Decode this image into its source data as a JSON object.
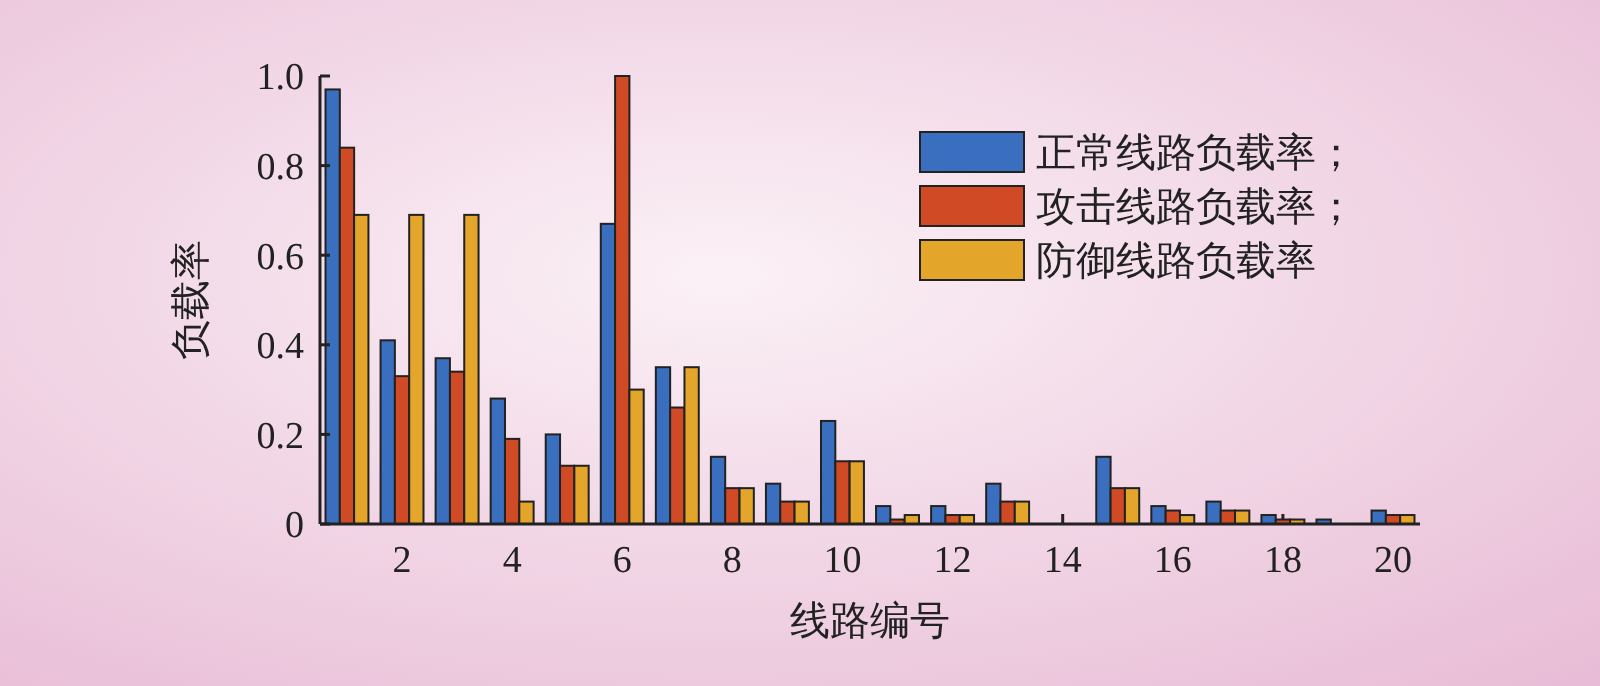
{
  "chart_data": {
    "type": "bar",
    "xlabel": "线路编号",
    "ylabel": "负载率",
    "categories": [
      null,
      "2",
      null,
      "4",
      null,
      "6",
      null,
      "8",
      null,
      "10",
      null,
      "12",
      null,
      "14",
      null,
      "16",
      null,
      "18",
      null,
      "20"
    ],
    "series": [
      {
        "name": "正常线路负载率；",
        "color": "#3a6fbf",
        "values": [
          0.97,
          0.41,
          0.37,
          0.28,
          0.2,
          0.67,
          0.35,
          0.15,
          0.09,
          0.23,
          0.04,
          0.04,
          0.09,
          0,
          0.15,
          0.04,
          0.05,
          0.02,
          0.01,
          0.03
        ]
      },
      {
        "name": "攻击线路负载率；",
        "color": "#d04a26",
        "values": [
          0.84,
          0.33,
          0.34,
          0.19,
          0.13,
          1.0,
          0.26,
          0.08,
          0.05,
          0.14,
          0.01,
          0.02,
          0.05,
          0,
          0.08,
          0.03,
          0.03,
          0.01,
          0,
          0.02
        ]
      },
      {
        "name": "防御线路负载率",
        "color": "#e3a52a",
        "values": [
          0.69,
          0.69,
          0.69,
          0.05,
          0.13,
          0.3,
          0.35,
          0.08,
          0.05,
          0.14,
          0.02,
          0.02,
          0.05,
          0,
          0.08,
          0.02,
          0.03,
          0.01,
          0,
          0.02
        ]
      }
    ],
    "ylim": [
      0,
      1.0
    ],
    "yticks": [
      0,
      {
        "value": 0.2,
        "label": "0.2"
      },
      {
        "value": 0.4,
        "label": "0.4"
      },
      {
        "value": 0.6,
        "label": "0.6"
      },
      {
        "value": 0.8,
        "label": "0.8"
      },
      {
        "value": 1,
        "label": "1.0"
      }
    ],
    "grid": false,
    "legend": "top right"
  }
}
